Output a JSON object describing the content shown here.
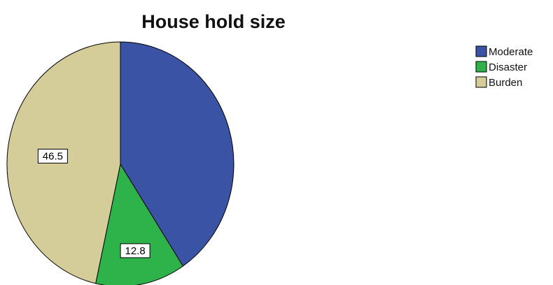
{
  "chart_data": {
    "type": "pie",
    "title": "House hold size",
    "slices": [
      {
        "label": "Moderate",
        "value": 40.7,
        "color": "#3a53a5",
        "data_label": ""
      },
      {
        "label": "Disaster",
        "value": 12.8,
        "color": "#2db34a",
        "data_label": "12.8"
      },
      {
        "label": "Burden",
        "value": 46.5,
        "color": "#d5cd99",
        "data_label": "46.5"
      }
    ],
    "legend": {
      "position": "top-right",
      "items": [
        {
          "label": "Moderate",
          "color": "#3a53a5"
        },
        {
          "label": "Disaster",
          "color": "#2db34a"
        },
        {
          "label": "Burden",
          "color": "#d5cd99"
        }
      ]
    }
  }
}
